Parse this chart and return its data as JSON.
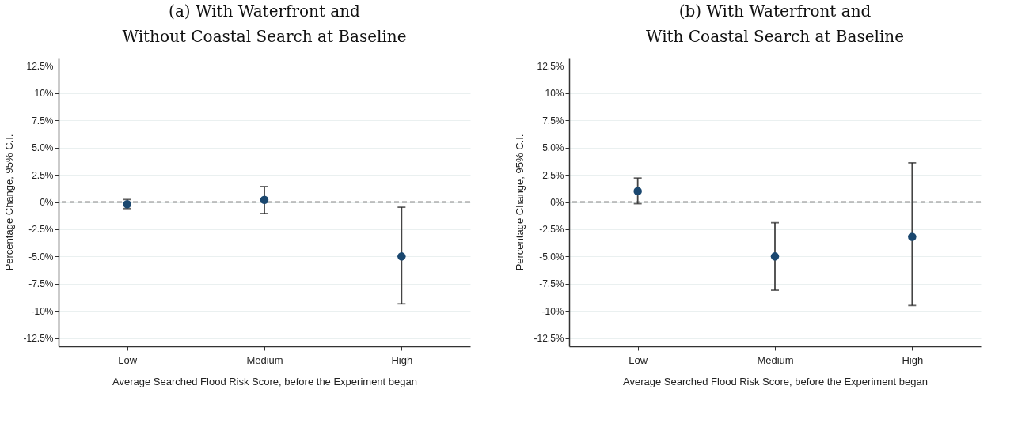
{
  "chart_data": [
    {
      "type": "scatter",
      "title": [
        "(a) With Waterfront and",
        "Without Coastal Search at Baseline"
      ],
      "xlabel": "Average Searched Flood Risk Score, before the Experiment began",
      "ylabel": "Percentage Change, 95% C.I.",
      "categories": [
        "Low",
        "Medium",
        "High"
      ],
      "series": [
        {
          "color": "#1a476f",
          "values": [
            -0.2,
            0.2,
            -5.0
          ],
          "errors": [
            [
              -0.6,
              0.23
            ],
            [
              -1.05,
              1.42
            ],
            [
              -9.35,
              -0.48
            ]
          ]
        }
      ],
      "ylim": [
        -13.25,
        13.25
      ],
      "yticks": [
        {
          "value": -12.5,
          "label": "-12.5%"
        },
        {
          "value": -10,
          "label": "-10%"
        },
        {
          "value": -7.5,
          "label": "-7.5%"
        },
        {
          "value": -5,
          "label": "-5.0%"
        },
        {
          "value": -2.5,
          "label": "-2.5%"
        },
        {
          "value": 0,
          "label": "0%"
        },
        {
          "value": 2.5,
          "label": "2.5%"
        },
        {
          "value": 5,
          "label": "5.0%"
        },
        {
          "value": 7.5,
          "label": "7.5%"
        },
        {
          "value": 10,
          "label": "10%"
        },
        {
          "value": 12.5,
          "label": "12.5%"
        }
      ],
      "grid": "y",
      "marker": "circle",
      "ref_lines": [
        {
          "axis": "y",
          "value": 0,
          "color": "#8c8c8c",
          "line_style": "dashed"
        }
      ]
    },
    {
      "type": "scatter",
      "title": [
        "(b) With Waterfront and",
        "With Coastal Search at Baseline"
      ],
      "xlabel": "Average Searched Flood Risk Score, before the Experiment began",
      "ylabel": "Percentage Change, 95% C.I.",
      "categories": [
        "Low",
        "Medium",
        "High"
      ],
      "series": [
        {
          "color": "#1a476f",
          "values": [
            1.0,
            -5.0,
            -3.2
          ],
          "errors": [
            [
              -0.15,
              2.2
            ],
            [
              -8.1,
              -1.9
            ],
            [
              -9.5,
              3.6
            ]
          ]
        }
      ],
      "ylim": [
        -13.25,
        13.25
      ],
      "yticks": [
        {
          "value": -12.5,
          "label": "-12.5%"
        },
        {
          "value": -10,
          "label": "-10%"
        },
        {
          "value": -7.5,
          "label": "-7.5%"
        },
        {
          "value": -5,
          "label": "-5.0%"
        },
        {
          "value": -2.5,
          "label": "-2.5%"
        },
        {
          "value": 0,
          "label": "0%"
        },
        {
          "value": 2.5,
          "label": "2.5%"
        },
        {
          "value": 5,
          "label": "5.0%"
        },
        {
          "value": 7.5,
          "label": "7.5%"
        },
        {
          "value": 10,
          "label": "10%"
        },
        {
          "value": 12.5,
          "label": "12.5%"
        }
      ],
      "grid": "y",
      "marker": "circle",
      "ref_lines": [
        {
          "axis": "y",
          "value": 0,
          "color": "#8c8c8c",
          "line_style": "dashed"
        }
      ]
    }
  ]
}
